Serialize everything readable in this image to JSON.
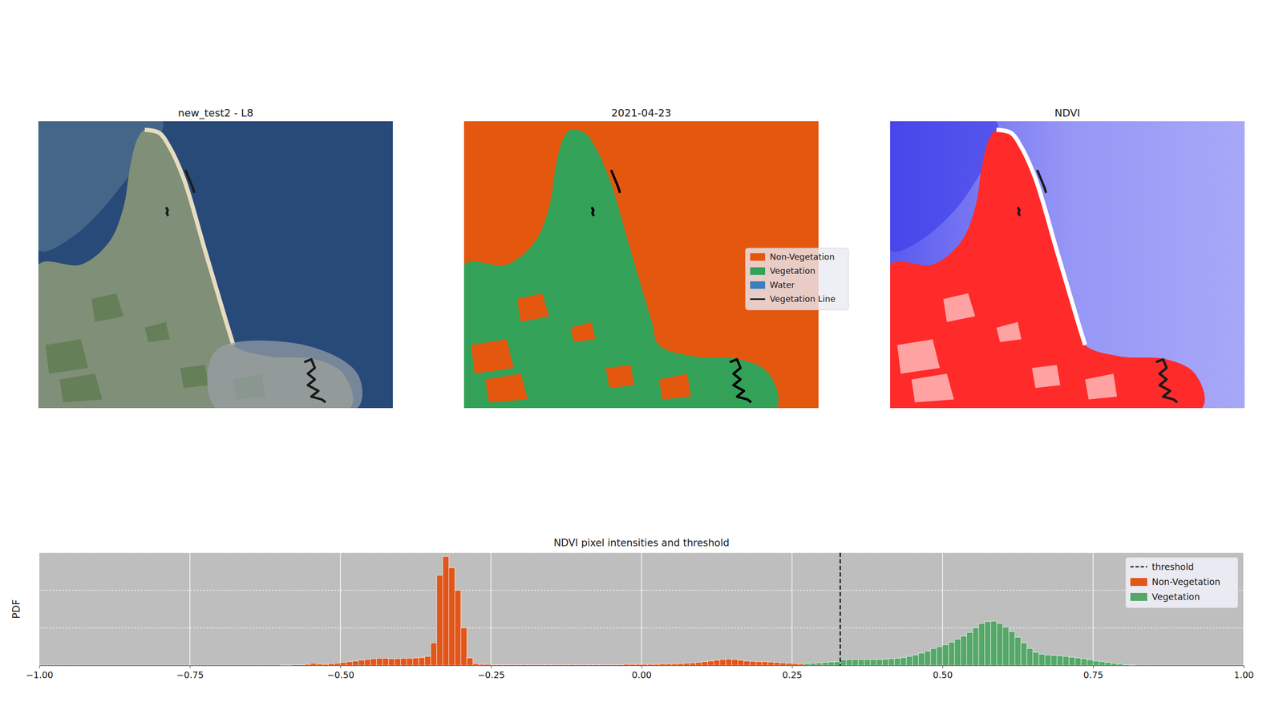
{
  "chart_data": [
    {
      "type": "image",
      "title": "new_test2 - L8",
      "tick_labels": false
    },
    {
      "type": "image",
      "title": "2021-04-23",
      "tick_labels": false,
      "legend": "center right",
      "series": [
        {
          "name": "Non-Vegetation",
          "color": "#e4570f"
        },
        {
          "name": "Vegetation",
          "color": "#33a157"
        },
        {
          "name": "Water",
          "color": "#3a7fc0"
        },
        {
          "name": "Vegetation Line",
          "color": "#000000",
          "type": "line"
        }
      ]
    },
    {
      "type": "image",
      "title": "NDVI",
      "tick_labels": false
    },
    {
      "type": "histogram",
      "title": "NDVI pixel intensities and threshold",
      "y_label": "PDF",
      "xlim": [
        -1,
        1
      ],
      "xticks": [
        {
          "value": -1,
          "label": "−1.00"
        },
        {
          "value": -0.75,
          "label": "−0.75"
        },
        {
          "value": -0.5,
          "label": "−0.50"
        },
        {
          "value": -0.25,
          "label": "−0.25"
        },
        {
          "value": 0,
          "label": "0.00"
        },
        {
          "value": 0.25,
          "label": "0.25"
        },
        {
          "value": 0.5,
          "label": "0.50"
        },
        {
          "value": 0.75,
          "label": "0.75"
        },
        {
          "value": 1,
          "label": "1.00"
        }
      ],
      "ylim": [
        0,
        3
      ],
      "yticks": [
        0,
        1,
        2,
        3
      ],
      "tick_labels": "x",
      "grid": true,
      "legend": "upper right",
      "series": [
        {
          "name": "threshold",
          "type": "vline",
          "color": "#000000",
          "line_style": "dashed",
          "values": [
            0.33
          ]
        },
        {
          "name": "Non-Vegetation",
          "color": "#e1561a",
          "bins": [
            -0.6,
            -0.59,
            -0.58,
            -0.57,
            -0.56,
            -0.55,
            -0.54,
            -0.53,
            -0.52,
            -0.51,
            -0.5,
            -0.49,
            -0.48,
            -0.47,
            -0.46,
            -0.45,
            -0.44,
            -0.43,
            -0.42,
            -0.41,
            -0.4,
            -0.39,
            -0.38,
            -0.37,
            -0.36,
            -0.35,
            -0.34,
            -0.33,
            -0.32,
            -0.31,
            -0.3,
            -0.29,
            -0.28,
            -0.27,
            -0.26,
            -0.25,
            -0.24,
            -0.23,
            -0.22,
            -0.21,
            -0.2,
            -0.19,
            -0.18,
            -0.17,
            -0.16,
            -0.15,
            -0.14,
            -0.13,
            -0.12,
            -0.11,
            -0.1,
            -0.09,
            -0.08,
            -0.07,
            -0.06,
            -0.05,
            -0.04,
            -0.03,
            -0.02,
            -0.01,
            0,
            0.01,
            0.02,
            0.03,
            0.04,
            0.05,
            0.06,
            0.07,
            0.08,
            0.09,
            0.1,
            0.11,
            0.12,
            0.13,
            0.14,
            0.15,
            0.16,
            0.17,
            0.18,
            0.19,
            0.2,
            0.21,
            0.22,
            0.23,
            0.24,
            0.25,
            0.26,
            0.27
          ],
          "values": [
            0.01,
            0.01,
            0.02,
            0.02,
            0.03,
            0.06,
            0.04,
            0.03,
            0.05,
            0.06,
            0.08,
            0.1,
            0.12,
            0.14,
            0.16,
            0.18,
            0.19,
            0.19,
            0.18,
            0.18,
            0.19,
            0.19,
            0.2,
            0.21,
            0.24,
            0.6,
            2.4,
            2.9,
            2.6,
            2.0,
            1.0,
            0.2,
            0.05,
            0.03,
            0.03,
            0.02,
            0.02,
            0.02,
            0.02,
            0.02,
            0.02,
            0.02,
            0.02,
            0.02,
            0.02,
            0.02,
            0.02,
            0.02,
            0.02,
            0.02,
            0.02,
            0.02,
            0.02,
            0.02,
            0.02,
            0.02,
            0.02,
            0.03,
            0.03,
            0.03,
            0.03,
            0.03,
            0.03,
            0.04,
            0.04,
            0.04,
            0.05,
            0.06,
            0.07,
            0.08,
            0.1,
            0.12,
            0.14,
            0.16,
            0.17,
            0.16,
            0.14,
            0.12,
            0.11,
            0.1,
            0.1,
            0.09,
            0.08,
            0.07,
            0.06,
            0.05,
            0.04
          ]
        },
        {
          "name": "Vegetation",
          "color": "#55a868",
          "bins": [
            0.27,
            0.28,
            0.29,
            0.3,
            0.31,
            0.32,
            0.33,
            0.34,
            0.35,
            0.36,
            0.37,
            0.38,
            0.39,
            0.4,
            0.41,
            0.42,
            0.43,
            0.44,
            0.45,
            0.46,
            0.47,
            0.48,
            0.49,
            0.5,
            0.51,
            0.52,
            0.53,
            0.54,
            0.55,
            0.56,
            0.57,
            0.58,
            0.59,
            0.6,
            0.61,
            0.62,
            0.63,
            0.64,
            0.65,
            0.66,
            0.67,
            0.68,
            0.69,
            0.7,
            0.71,
            0.72,
            0.73,
            0.74,
            0.75,
            0.76,
            0.77,
            0.78,
            0.79,
            0.8,
            0.81,
            0.82
          ],
          "values": [
            0.05,
            0.06,
            0.07,
            0.08,
            0.09,
            0.1,
            0.15,
            0.16,
            0.16,
            0.16,
            0.16,
            0.16,
            0.16,
            0.17,
            0.18,
            0.19,
            0.21,
            0.24,
            0.28,
            0.33,
            0.38,
            0.45,
            0.5,
            0.55,
            0.62,
            0.7,
            0.78,
            0.88,
            1.0,
            1.12,
            1.17,
            1.18,
            1.12,
            1.02,
            0.9,
            0.75,
            0.6,
            0.45,
            0.35,
            0.3,
            0.28,
            0.27,
            0.26,
            0.24,
            0.22,
            0.2,
            0.18,
            0.15,
            0.12,
            0.1,
            0.08,
            0.06,
            0.04,
            0.02,
            0.01
          ]
        }
      ]
    }
  ]
}
